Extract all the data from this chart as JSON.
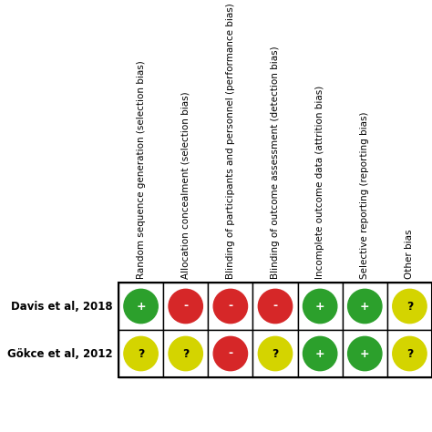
{
  "col_labels": [
    "Random sequence generation (selection bias)",
    "Allocation concealment (selection bias)",
    "Blinding of participants and personnel (performance bias)",
    "Blinding of outcome assessment (detection bias)",
    "Incomplete outcome data (attrition bias)",
    "Selective reporting (reporting bias)",
    "Other bias"
  ],
  "row_labels": [
    "Davis et al, 2018",
    "Gökce et al, 2012"
  ],
  "symbols": [
    [
      "+",
      "-",
      "-",
      "-",
      "+",
      "+",
      "?"
    ],
    [
      "?",
      "?",
      "-",
      "?",
      "+",
      "+",
      "?"
    ]
  ],
  "colors": [
    [
      "#2ca02c",
      "#d62728",
      "#d62728",
      "#d62728",
      "#2ca02c",
      "#2ca02c",
      "#d4d400"
    ],
    [
      "#d4d400",
      "#d4d400",
      "#d62728",
      "#d4d400",
      "#2ca02c",
      "#2ca02c",
      "#d4d400"
    ]
  ],
  "green": "#2ca02c",
  "red": "#d62728",
  "yellow": "#d4d400",
  "background": "#ffffff",
  "text_color": "#000000",
  "font_size_col": 7.5,
  "font_size_row": 8.5,
  "font_size_symbol": 9
}
